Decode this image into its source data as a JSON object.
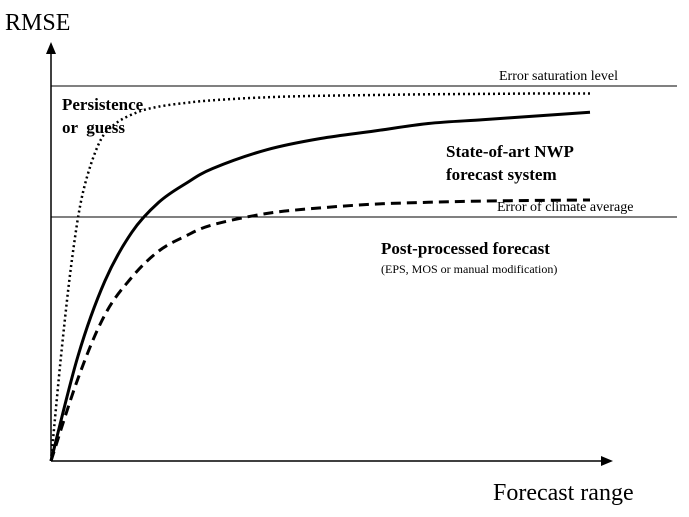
{
  "chart_data": {
    "type": "line",
    "ylabel": "RMSE",
    "xlabel": "Forecast range",
    "reference_lines": [
      {
        "label": "Error saturation level",
        "y": 1.0
      },
      {
        "label": "Error of climate average",
        "y": 0.7
      }
    ],
    "series": [
      {
        "name": "Persistence or guess",
        "style": "dotted",
        "x": [
          0,
          0.02,
          0.04,
          0.06,
          0.09,
          0.12,
          0.16,
          0.2,
          0.25,
          0.3,
          0.4,
          0.5,
          0.6,
          0.7,
          0.8,
          0.9,
          1.0
        ],
        "y": [
          0,
          0.3,
          0.55,
          0.72,
          0.85,
          0.9,
          0.93,
          0.945,
          0.955,
          0.962,
          0.97,
          0.974,
          0.976,
          0.978,
          0.979,
          0.98,
          0.98
        ]
      },
      {
        "name": "State-of-art NWP forecast system",
        "style": "solid",
        "x": [
          0,
          0.05,
          0.1,
          0.15,
          0.2,
          0.25,
          0.3,
          0.4,
          0.5,
          0.6,
          0.7,
          0.8,
          0.9,
          1.0
        ],
        "y": [
          0,
          0.28,
          0.48,
          0.61,
          0.69,
          0.74,
          0.78,
          0.83,
          0.86,
          0.88,
          0.9,
          0.91,
          0.92,
          0.93
        ]
      },
      {
        "name": "Post-processed forecast",
        "style": "dashed",
        "x": [
          0,
          0.05,
          0.1,
          0.15,
          0.2,
          0.25,
          0.3,
          0.4,
          0.5,
          0.6,
          0.7,
          0.8,
          0.9,
          1.0
        ],
        "y": [
          0,
          0.22,
          0.39,
          0.49,
          0.56,
          0.6,
          0.63,
          0.66,
          0.675,
          0.685,
          0.69,
          0.693,
          0.695,
          0.696
        ]
      }
    ],
    "annotations": [
      {
        "text": "Persistence"
      },
      {
        "text": "or  guess"
      },
      {
        "text": "State-of-art NWP"
      },
      {
        "text": "forecast system"
      },
      {
        "text": "Post-processed forecast"
      },
      {
        "text": "(EPS, MOS or manual modification)"
      }
    ],
    "xlim": [
      0,
      1
    ],
    "ylim": [
      0,
      1
    ],
    "grid": false,
    "legend": "none"
  }
}
